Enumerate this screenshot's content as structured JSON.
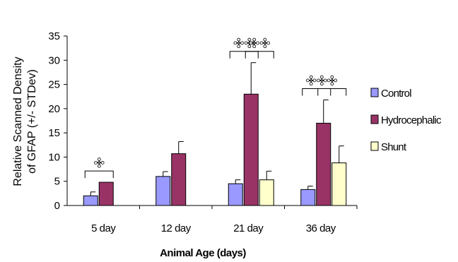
{
  "chart_data": {
    "type": "bar",
    "title": "",
    "xlabel": "Animal Age (days)",
    "ylabel_lines": [
      "Relative Scanned Density",
      "of GFAP (+/- STDev)"
    ],
    "ylim": [
      0,
      35
    ],
    "yticks": [
      "0",
      "5",
      "10",
      "15",
      "20",
      "25",
      "30",
      "35"
    ],
    "categories": [
      "5 day",
      "12 day",
      "21 day",
      "36 day"
    ],
    "series": [
      {
        "name": "Control",
        "color": "#9999FF",
        "values": [
          2.0,
          6.0,
          4.5,
          3.3
        ],
        "errors": [
          0.8,
          1.0,
          0.8,
          0.7
        ]
      },
      {
        "name": "Hydrocephalic",
        "color": "#993366",
        "values": [
          4.8,
          10.7,
          23.0,
          17.0
        ],
        "errors": [
          0,
          2.5,
          6.5,
          4.8
        ]
      },
      {
        "name": "Shunt",
        "color": "#FFFFCC",
        "values": [
          null,
          null,
          5.3,
          8.8
        ],
        "errors": [
          0,
          0,
          1.8,
          3.5
        ]
      }
    ],
    "legend_position": "right",
    "significance_marker": "✣",
    "significance": [
      {
        "category": 0,
        "from_series": 0,
        "to_series": 1
      },
      {
        "category": 2,
        "from_series": 0,
        "to_series": 1,
        "double": true
      },
      {
        "category": 2,
        "from_series": 1,
        "to_series": 2,
        "double": true
      },
      {
        "category": 3,
        "from_series": 0,
        "to_series": 1,
        "double": true
      },
      {
        "category": 3,
        "from_series": 1,
        "to_series": 2
      }
    ]
  }
}
